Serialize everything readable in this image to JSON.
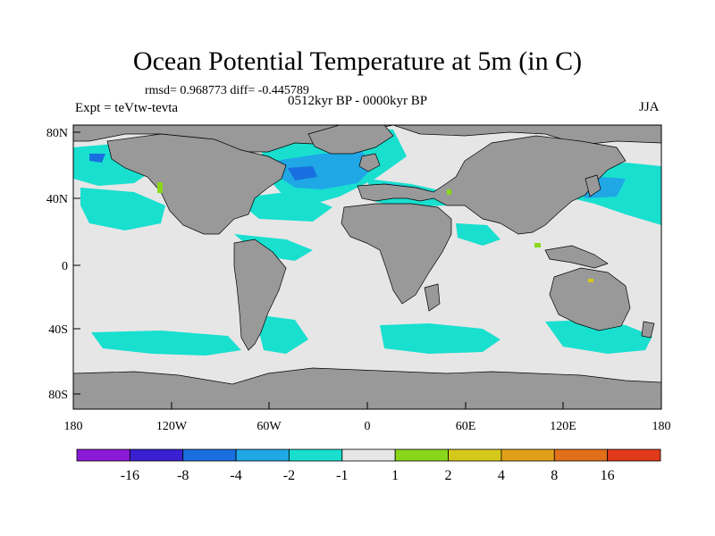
{
  "title": "Ocean Potential Temperature at 5m (in C)",
  "stats": {
    "rmsd_label": "rmsd=",
    "rmsd": "0.968773",
    "diff_label": "diff=",
    "diff": "-0.445789"
  },
  "period": "0512kyr BP - 0000kyr BP",
  "experiment": "Expt = teVtw-tevta",
  "season": "JJA",
  "axes": {
    "lat_ticks": [
      "80N",
      "40N",
      "0",
      "40S",
      "80S"
    ],
    "lon_ticks": [
      "180",
      "120W",
      "60W",
      "0",
      "60E",
      "120E",
      "180"
    ]
  },
  "colorbar": {
    "colors": [
      "#8b1ad6",
      "#3a20d0",
      "#1a6fe0",
      "#1fa7e6",
      "#19dfcf",
      "#e6e6e6",
      "#8ad61a",
      "#d6c81a",
      "#e0a01a",
      "#e0701a",
      "#e03a1a"
    ],
    "labels": [
      "-16",
      "-8",
      "-4",
      "-2",
      "-1",
      "1",
      "2",
      "4",
      "8",
      "16"
    ]
  },
  "colors": {
    "land": "#999999",
    "ocean": "#e6e6e6",
    "cool_1": "#19dfcf",
    "cool_2": "#1fa7e6",
    "cool_4": "#1a6fe0",
    "warm_1": "#8ad61a",
    "warm_2": "#d6c81a"
  }
}
